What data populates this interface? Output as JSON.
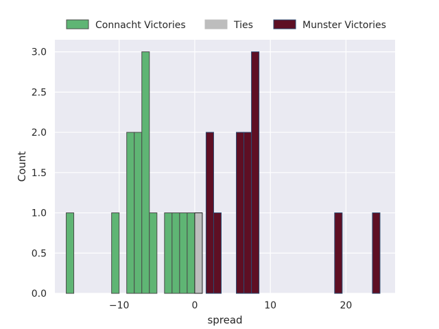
{
  "chart_data": {
    "type": "bar",
    "subtype": "histogram",
    "title": "",
    "xlabel": "spread",
    "ylabel": "Count",
    "xlim": [
      -18.5,
      26.5
    ],
    "ylim": [
      0,
      3.15
    ],
    "xticks": [
      -10,
      0,
      10,
      20
    ],
    "xtick_labels": [
      "−10",
      "0",
      "10",
      "20"
    ],
    "yticks": [
      0.0,
      0.5,
      1.0,
      1.5,
      2.0,
      2.5,
      3.0
    ],
    "ytick_labels": [
      "0.0",
      "0.5",
      "1.0",
      "1.5",
      "2.0",
      "2.5",
      "3.0"
    ],
    "grid": true,
    "legend_position": "top",
    "colors": {
      "background": "#eaeaf2",
      "grid": "#ffffff",
      "connacht": "#5fb574",
      "ties": "#bdbdbd",
      "munster": "#5e0f24",
      "connacht_edge": "#4a4a4a",
      "ties_edge": "#222222",
      "munster_edge": "#2b4a6f"
    },
    "series": [
      {
        "name": "Connacht Victories",
        "color_key": "connacht",
        "bins": [
          {
            "x0": -17,
            "x1": -16,
            "count": 1
          },
          {
            "x0": -11,
            "x1": -10,
            "count": 1
          },
          {
            "x0": -9,
            "x1": -8,
            "count": 2
          },
          {
            "x0": -8,
            "x1": -7,
            "count": 2
          },
          {
            "x0": -7,
            "x1": -6,
            "count": 3
          },
          {
            "x0": -6,
            "x1": -5,
            "count": 1
          },
          {
            "x0": -4,
            "x1": -3,
            "count": 1
          },
          {
            "x0": -3,
            "x1": -2,
            "count": 1
          },
          {
            "x0": -2,
            "x1": -1,
            "count": 1
          },
          {
            "x0": -1,
            "x1": 0,
            "count": 1
          }
        ]
      },
      {
        "name": "Ties",
        "color_key": "ties",
        "bins": [
          {
            "x0": 0,
            "x1": 1,
            "count": 1
          }
        ]
      },
      {
        "name": "Munster Victories",
        "color_key": "munster",
        "bins": [
          {
            "x0": 1.5,
            "x1": 2.5,
            "count": 2
          },
          {
            "x0": 2.5,
            "x1": 3.5,
            "count": 1
          },
          {
            "x0": 5.5,
            "x1": 6.5,
            "count": 2
          },
          {
            "x0": 6.5,
            "x1": 7.5,
            "count": 2
          },
          {
            "x0": 7.5,
            "x1": 8.5,
            "count": 3
          },
          {
            "x0": 18.5,
            "x1": 19.5,
            "count": 1
          },
          {
            "x0": 23.5,
            "x1": 24.5,
            "count": 1
          }
        ]
      }
    ]
  }
}
